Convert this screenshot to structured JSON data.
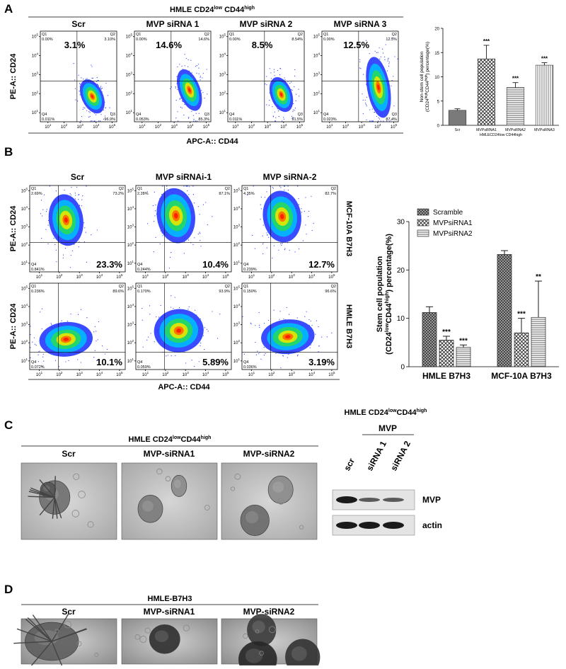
{
  "flow_axis": {
    "quadrants": [
      "Q1",
      "Q2",
      "Q3",
      "Q4"
    ],
    "tick_base": "10",
    "tick_exponents": [
      1,
      2,
      3,
      4,
      5
    ]
  },
  "panel_a": {
    "label": "A",
    "title": [
      "HMLE CD24",
      "low",
      " CD44",
      "high"
    ],
    "y_axis_label": "PE-A:: CD24",
    "x_axis_label": "APC-A:: CD44",
    "plots": [
      {
        "title": "Scr",
        "percent": "3.1%",
        "q1": "0.00%",
        "q2": "3.10%",
        "q3": "96.9%",
        "q4": "0.011%"
      },
      {
        "title": "MVP siRNA 1",
        "percent": "14.6%",
        "q1": "0.00%",
        "q2": "14.6%",
        "q3": "85.3%",
        "q4": "0.053%"
      },
      {
        "title": "MVP siRNA 2",
        "percent": "8.5%",
        "q1": "0.00%",
        "q2": "8.54%",
        "q3": "91.5%",
        "q4": "0.011%"
      },
      {
        "title": "MVP siRNA 3",
        "percent": "12.5%",
        "q1": "0.00%",
        "q2": "12.5%",
        "q3": "87.4%",
        "q4": "0.023%"
      }
    ],
    "bar_chart": {
      "type": "bar",
      "y_label": [
        "Non-stem cell population",
        "(CD24",
        "high",
        "CD44",
        "high",
        ") percentage(%)"
      ],
      "categories": [
        "Scr",
        "MVPsiRNA1",
        "MVPsiRNA2",
        "MVPsiRNA3"
      ],
      "group_label": "HMLECD24low CD44high",
      "values": [
        3.1,
        13.7,
        7.8,
        12.4
      ],
      "errors": [
        0.3,
        2.8,
        1.0,
        0.5
      ],
      "significance": [
        null,
        "***",
        "***",
        "***"
      ],
      "patterns": [
        "solid",
        "crosshatch",
        "hlines",
        "vlines"
      ],
      "ylim": [
        0,
        20
      ],
      "yticks": [
        0,
        5,
        10,
        15,
        20
      ]
    }
  },
  "panel_b": {
    "label": "B",
    "columns": [
      "Scr",
      "MVP siRNAi-1",
      "MVP siRNA-2"
    ],
    "rows": [
      {
        "name": "MCF-10A B7H3",
        "plots": [
          {
            "percent": "23.3%",
            "q1": "2.69%",
            "q2": "73.2%",
            "q4": "0.841%"
          },
          {
            "percent": "10.4%",
            "q1": "2.28%",
            "q2": "87.1%",
            "q4": "0.244%"
          },
          {
            "percent": "12.7%",
            "q1": "4.35%",
            "q2": "82.7%",
            "q4": "0.239%"
          }
        ]
      },
      {
        "name": "HMLE B7H3",
        "plots": [
          {
            "percent": "10.1%",
            "q1": "0.236%",
            "q2": "89.6%",
            "q4": "0.072%"
          },
          {
            "percent": "5.89%",
            "q1": "0.170%",
            "q2": "93.9%",
            "q4": "0.059%"
          },
          {
            "percent": "3.19%",
            "q1": "0.150%",
            "q2": "96.6%",
            "q4": "0.036%"
          }
        ]
      }
    ],
    "y_axis_label": "PE-A:: CD24",
    "x_axis_label": "APC-A:: CD44",
    "bar_chart": {
      "type": "bar",
      "y_label": [
        "Stem cell population",
        "(CD24",
        "low",
        "CD44",
        "high",
        ") percentage(%)"
      ],
      "categories": [
        "HMLE B7H3",
        "MCF-10A  B7H3"
      ],
      "series": [
        {
          "name": "Scramble",
          "pattern": "check",
          "values": [
            11.2,
            23.2
          ],
          "errors": [
            1.2,
            0.8
          ],
          "significance": [
            null,
            null
          ]
        },
        {
          "name": "MVPsiRNA1",
          "pattern": "crosshatch",
          "values": [
            5.5,
            7.0
          ],
          "errors": [
            0.8,
            3.0
          ],
          "significance": [
            "***",
            "***"
          ]
        },
        {
          "name": "MVPsiRNA2",
          "pattern": "hlines",
          "values": [
            4.0,
            10.2
          ],
          "errors": [
            0.5,
            7.5
          ],
          "significance": [
            "***",
            "**"
          ]
        }
      ],
      "ylim": [
        0,
        30
      ],
      "yticks": [
        0,
        10,
        20,
        30
      ]
    }
  },
  "panel_c": {
    "label": "C",
    "title": [
      "HMLE CD24",
      "low",
      "CD44",
      "high"
    ],
    "images": [
      "Scr",
      "MVP-siRNA1",
      "MVP-siRNA2"
    ],
    "western_blot": {
      "title": [
        "HMLE CD24",
        "low",
        "CD44",
        "high"
      ],
      "group": "MVP",
      "lanes": [
        "scr",
        "siRNA 1",
        "siRNA 2"
      ],
      "bands": [
        "MVP",
        "actin"
      ]
    }
  },
  "panel_d": {
    "label": "D",
    "title": "HMLE-B7H3",
    "images": [
      "Scr",
      "MVP-siRNA1",
      "MVP-siRNA2"
    ]
  }
}
